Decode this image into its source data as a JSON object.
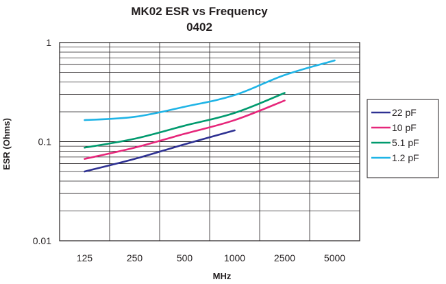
{
  "chart_data": {
    "type": "line",
    "title": "MK02 ESR vs Frequency",
    "subtitle": "0402",
    "xlabel": "MHz",
    "ylabel": "ESR (Ohms)",
    "categories": [
      "125",
      "250",
      "500",
      "1000",
      "2500",
      "5000"
    ],
    "yscale": "log",
    "ylim": [
      0.01,
      1
    ],
    "yticks": [
      "1",
      "0.1",
      "0.01"
    ],
    "grid": true,
    "legend_position": "right",
    "series": [
      {
        "name": "22 pF",
        "color": "#2e3192",
        "values": [
          0.05,
          0.067,
          0.094,
          0.13,
          null,
          null
        ]
      },
      {
        "name": "10 pF",
        "color": "#e6267a",
        "values": [
          0.067,
          0.087,
          0.12,
          0.165,
          0.26,
          null
        ]
      },
      {
        "name": "5.1 pF",
        "color": "#009a6e",
        "values": [
          0.087,
          0.107,
          0.145,
          0.195,
          0.31,
          null
        ]
      },
      {
        "name": "1.2 pF",
        "color": "#1fb4e6",
        "values": [
          0.165,
          0.178,
          0.225,
          0.295,
          0.47,
          0.66
        ]
      }
    ]
  }
}
